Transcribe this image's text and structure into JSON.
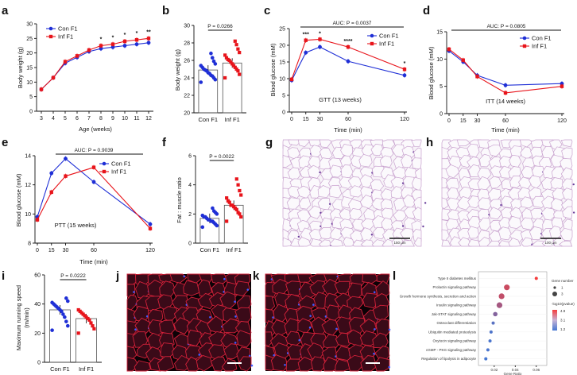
{
  "groups": {
    "con": "Con F1",
    "inf": "Inf F1"
  },
  "colors": {
    "con": "#1f2fd6",
    "inf": "#e8141b",
    "con_point": "#1f2fd6",
    "inf_point": "#e8141b"
  },
  "panels": {
    "a": {
      "label": "a",
      "ylabel": "Body weight (g)",
      "xlabel": "Age (weeks)",
      "legend_con": "Con F1",
      "legend_inf": "Inf F1"
    },
    "b": {
      "label": "b",
      "ylabel": "Body weight (g)",
      "p": "P = 0.0266",
      "cat_con": "Con F1",
      "cat_inf": "Inf F1"
    },
    "c": {
      "label": "c",
      "ylabel": "Blood glucose (mM)",
      "xlabel": "Time (min)",
      "auc": "AUC: P = 0.0037",
      "note": "GTT (13 weeks)",
      "legend_con": "Con F1",
      "legend_inf": "Inf F1"
    },
    "d": {
      "label": "d",
      "ylabel": "Blood glucose (mM)",
      "xlabel": "Time (min)",
      "auc": "AUC: P = 0.0805",
      "note": "ITT (14 weeks)",
      "legend_con": "Con F1",
      "legend_inf": "Inf F1"
    },
    "e": {
      "label": "e",
      "ylabel": "Blood glucose (mM)",
      "xlabel": "Time (min)",
      "auc": "AUC: P = 0.9039",
      "note": "PTT (15 weeks)",
      "legend_con": "Con F1",
      "legend_inf": "Inf F1"
    },
    "f": {
      "label": "f",
      "ylabel": "Fat : muscle ratio",
      "p": "P = 0.0022",
      "cat_con": "Con F1",
      "cat_inf": "Inf F1"
    },
    "g": {
      "label": "g",
      "scale": "150 µm"
    },
    "h": {
      "label": "h",
      "scale": "100 µm"
    },
    "i": {
      "label": "i",
      "ylabel_1": "Maximum running speed",
      "ylabel_2": "(m/min)",
      "p": "P = 0.0222",
      "cat_con": "Con F1",
      "cat_inf": "Inf F1"
    },
    "j": {
      "label": "j"
    },
    "k": {
      "label": "k"
    },
    "l": {
      "label": "l",
      "xlabel": "Gene Ratio",
      "legend_count_title": "Gene number",
      "legend_p_title": "-log10(pvalue)"
    }
  },
  "chart_data": [
    {
      "panel": "a",
      "type": "line",
      "title": "",
      "xlabel": "Age (weeks)",
      "ylabel": "Body weight (g)",
      "x": [
        3,
        4,
        5,
        6,
        7,
        8,
        9,
        10,
        11,
        12
      ],
      "series": [
        {
          "name": "Con F1",
          "values": [
            7.5,
            11.5,
            16.5,
            18.5,
            20.5,
            21.5,
            22.0,
            22.5,
            23.0,
            23.5
          ]
        },
        {
          "name": "Inf F1",
          "values": [
            7.5,
            11.5,
            17.0,
            19.0,
            21.0,
            22.5,
            23.0,
            24.0,
            24.5,
            25.0
          ]
        }
      ],
      "ylim": [
        0,
        30
      ],
      "yticks": [
        0,
        5,
        10,
        15,
        20,
        25,
        30
      ],
      "xticks": [
        3,
        4,
        5,
        6,
        7,
        8,
        9,
        10,
        11,
        12
      ],
      "annotations": [
        {
          "x": 8,
          "text": "*"
        },
        {
          "x": 9,
          "text": "*"
        },
        {
          "x": 10,
          "text": "*"
        },
        {
          "x": 11,
          "text": "*"
        },
        {
          "x": 12,
          "text": "**"
        }
      ]
    },
    {
      "panel": "b",
      "type": "bar",
      "categories": [
        "Con F1",
        "Inf F1"
      ],
      "values": [
        24.9,
        25.7
      ],
      "ylim": [
        20,
        30
      ],
      "yticks": [
        20,
        22,
        24,
        26,
        28,
        30
      ],
      "ylabel": "Body weight (g)",
      "points": {
        "Con F1": [
          23.5,
          23.8,
          24.0,
          24.2,
          24.3,
          24.5,
          24.6,
          24.8,
          24.9,
          25.0,
          25.2,
          25.4,
          25.6,
          25.9,
          26.3,
          26.8
        ],
        "Inf F1": [
          24.0,
          24.4,
          24.8,
          25.0,
          25.2,
          25.4,
          25.6,
          25.8,
          26.0,
          26.1,
          26.3,
          26.6,
          26.9,
          27.3,
          27.8,
          28.2
        ]
      }
    },
    {
      "panel": "c",
      "type": "line",
      "xlabel": "Time (min)",
      "ylabel": "Blood glucose (mM)",
      "x": [
        0,
        15,
        30,
        60,
        120
      ],
      "series": [
        {
          "name": "Con F1",
          "values": [
            9.5,
            17.8,
            19.5,
            15.2,
            11.0
          ]
        },
        {
          "name": "Inf F1",
          "values": [
            9.8,
            21.5,
            21.8,
            19.5,
            12.8
          ]
        }
      ],
      "ylim": [
        0,
        25
      ],
      "yticks": [
        0,
        5,
        10,
        15,
        20,
        25
      ],
      "xticks": [
        0,
        15,
        30,
        60,
        120
      ],
      "annotations": [
        {
          "x": 15,
          "text": "***"
        },
        {
          "x": 30,
          "text": "*"
        },
        {
          "x": 60,
          "text": "****"
        },
        {
          "x": 120,
          "text": "*"
        }
      ]
    },
    {
      "panel": "d",
      "type": "line",
      "xlabel": "Time (min)",
      "ylabel": "Blood glucose (mM)",
      "x": [
        0,
        15,
        30,
        60,
        120
      ],
      "series": [
        {
          "name": "Con F1",
          "values": [
            11.5,
            9.5,
            7.0,
            5.2,
            5.5
          ]
        },
        {
          "name": "Inf F1",
          "values": [
            11.8,
            9.8,
            6.8,
            3.8,
            5.0
          ]
        }
      ],
      "ylim": [
        0,
        15
      ],
      "yticks": [
        0,
        5,
        10,
        15
      ],
      "xticks": [
        0,
        15,
        30,
        60,
        120
      ]
    },
    {
      "panel": "e",
      "type": "line",
      "xlabel": "Time (min)",
      "ylabel": "Blood glucose (mM)",
      "x": [
        0,
        15,
        30,
        60,
        120
      ],
      "series": [
        {
          "name": "Con F1",
          "values": [
            9.8,
            12.8,
            13.8,
            12.2,
            9.3
          ]
        },
        {
          "name": "Inf F1",
          "values": [
            9.6,
            11.5,
            12.6,
            13.2,
            9.0
          ]
        }
      ],
      "ylim": [
        8,
        14
      ],
      "yticks": [
        8,
        10,
        12,
        14
      ],
      "xticks": [
        0,
        15,
        30,
        60,
        120
      ]
    },
    {
      "panel": "f",
      "type": "bar",
      "categories": [
        "Con F1",
        "Inf F1"
      ],
      "values": [
        1.7,
        2.6
      ],
      "ylim": [
        0,
        6
      ],
      "yticks": [
        0,
        2,
        4,
        6
      ],
      "ylabel": "Fat : muscle ratio",
      "points": {
        "Con F1": [
          1.1,
          1.2,
          1.3,
          1.4,
          1.5,
          1.5,
          1.6,
          1.6,
          1.7,
          1.8,
          1.8,
          1.9,
          2.0,
          2.1,
          2.2,
          2.4
        ],
        "Inf F1": [
          1.5,
          1.8,
          2.0,
          2.1,
          2.3,
          2.4,
          2.5,
          2.6,
          2.6,
          2.8,
          2.9,
          3.1,
          3.3,
          3.6,
          4.0,
          4.4
        ]
      }
    },
    {
      "panel": "i",
      "type": "bar",
      "categories": [
        "Con F1",
        "Inf F1"
      ],
      "values": [
        36,
        30
      ],
      "ylim": [
        0,
        60
      ],
      "yticks": [
        0,
        20,
        40,
        60
      ],
      "ylabel": "Maximum running speed (m/min)",
      "points": {
        "Con F1": [
          22,
          25,
          28,
          31,
          33,
          35,
          36,
          37,
          38,
          39,
          40,
          41,
          42,
          44
        ],
        "Inf F1": [
          20,
          23,
          25,
          27,
          29,
          30,
          31,
          32,
          33,
          34,
          35,
          36
        ]
      }
    },
    {
      "panel": "l",
      "type": "scatter",
      "xlabel": "Gene Ratio",
      "categories": [
        "Type II diabetes mellitus",
        "Prolactin signaling pathway",
        "Growth hormone synthesis, secretion and action",
        "Insulin signaling pathway",
        "Jak-STAT signaling pathway",
        "Osteoclast differentiation",
        "Ubiquitin mediated proteolysis",
        "Oxytocin signaling pathway",
        "cGMP - PKG signaling pathway",
        "Regulation of lipolysis in adipocyte"
      ],
      "gene_ratio": [
        0.06,
        0.032,
        0.027,
        0.025,
        0.021,
        0.019,
        0.017,
        0.016,
        0.014,
        0.012
      ],
      "gene_number": [
        1,
        3,
        3,
        3,
        2,
        1,
        1,
        1,
        1,
        1
      ],
      "neglog10p": [
        4.9,
        4.0,
        3.8,
        3.2,
        2.5,
        1.6,
        1.4,
        1.3,
        1.3,
        1.2
      ],
      "xticks": [
        0.02,
        0.04,
        0.06
      ],
      "legend_count": [
        1,
        3
      ],
      "legend_color": [
        4.9,
        3.1,
        1.2
      ]
    }
  ]
}
